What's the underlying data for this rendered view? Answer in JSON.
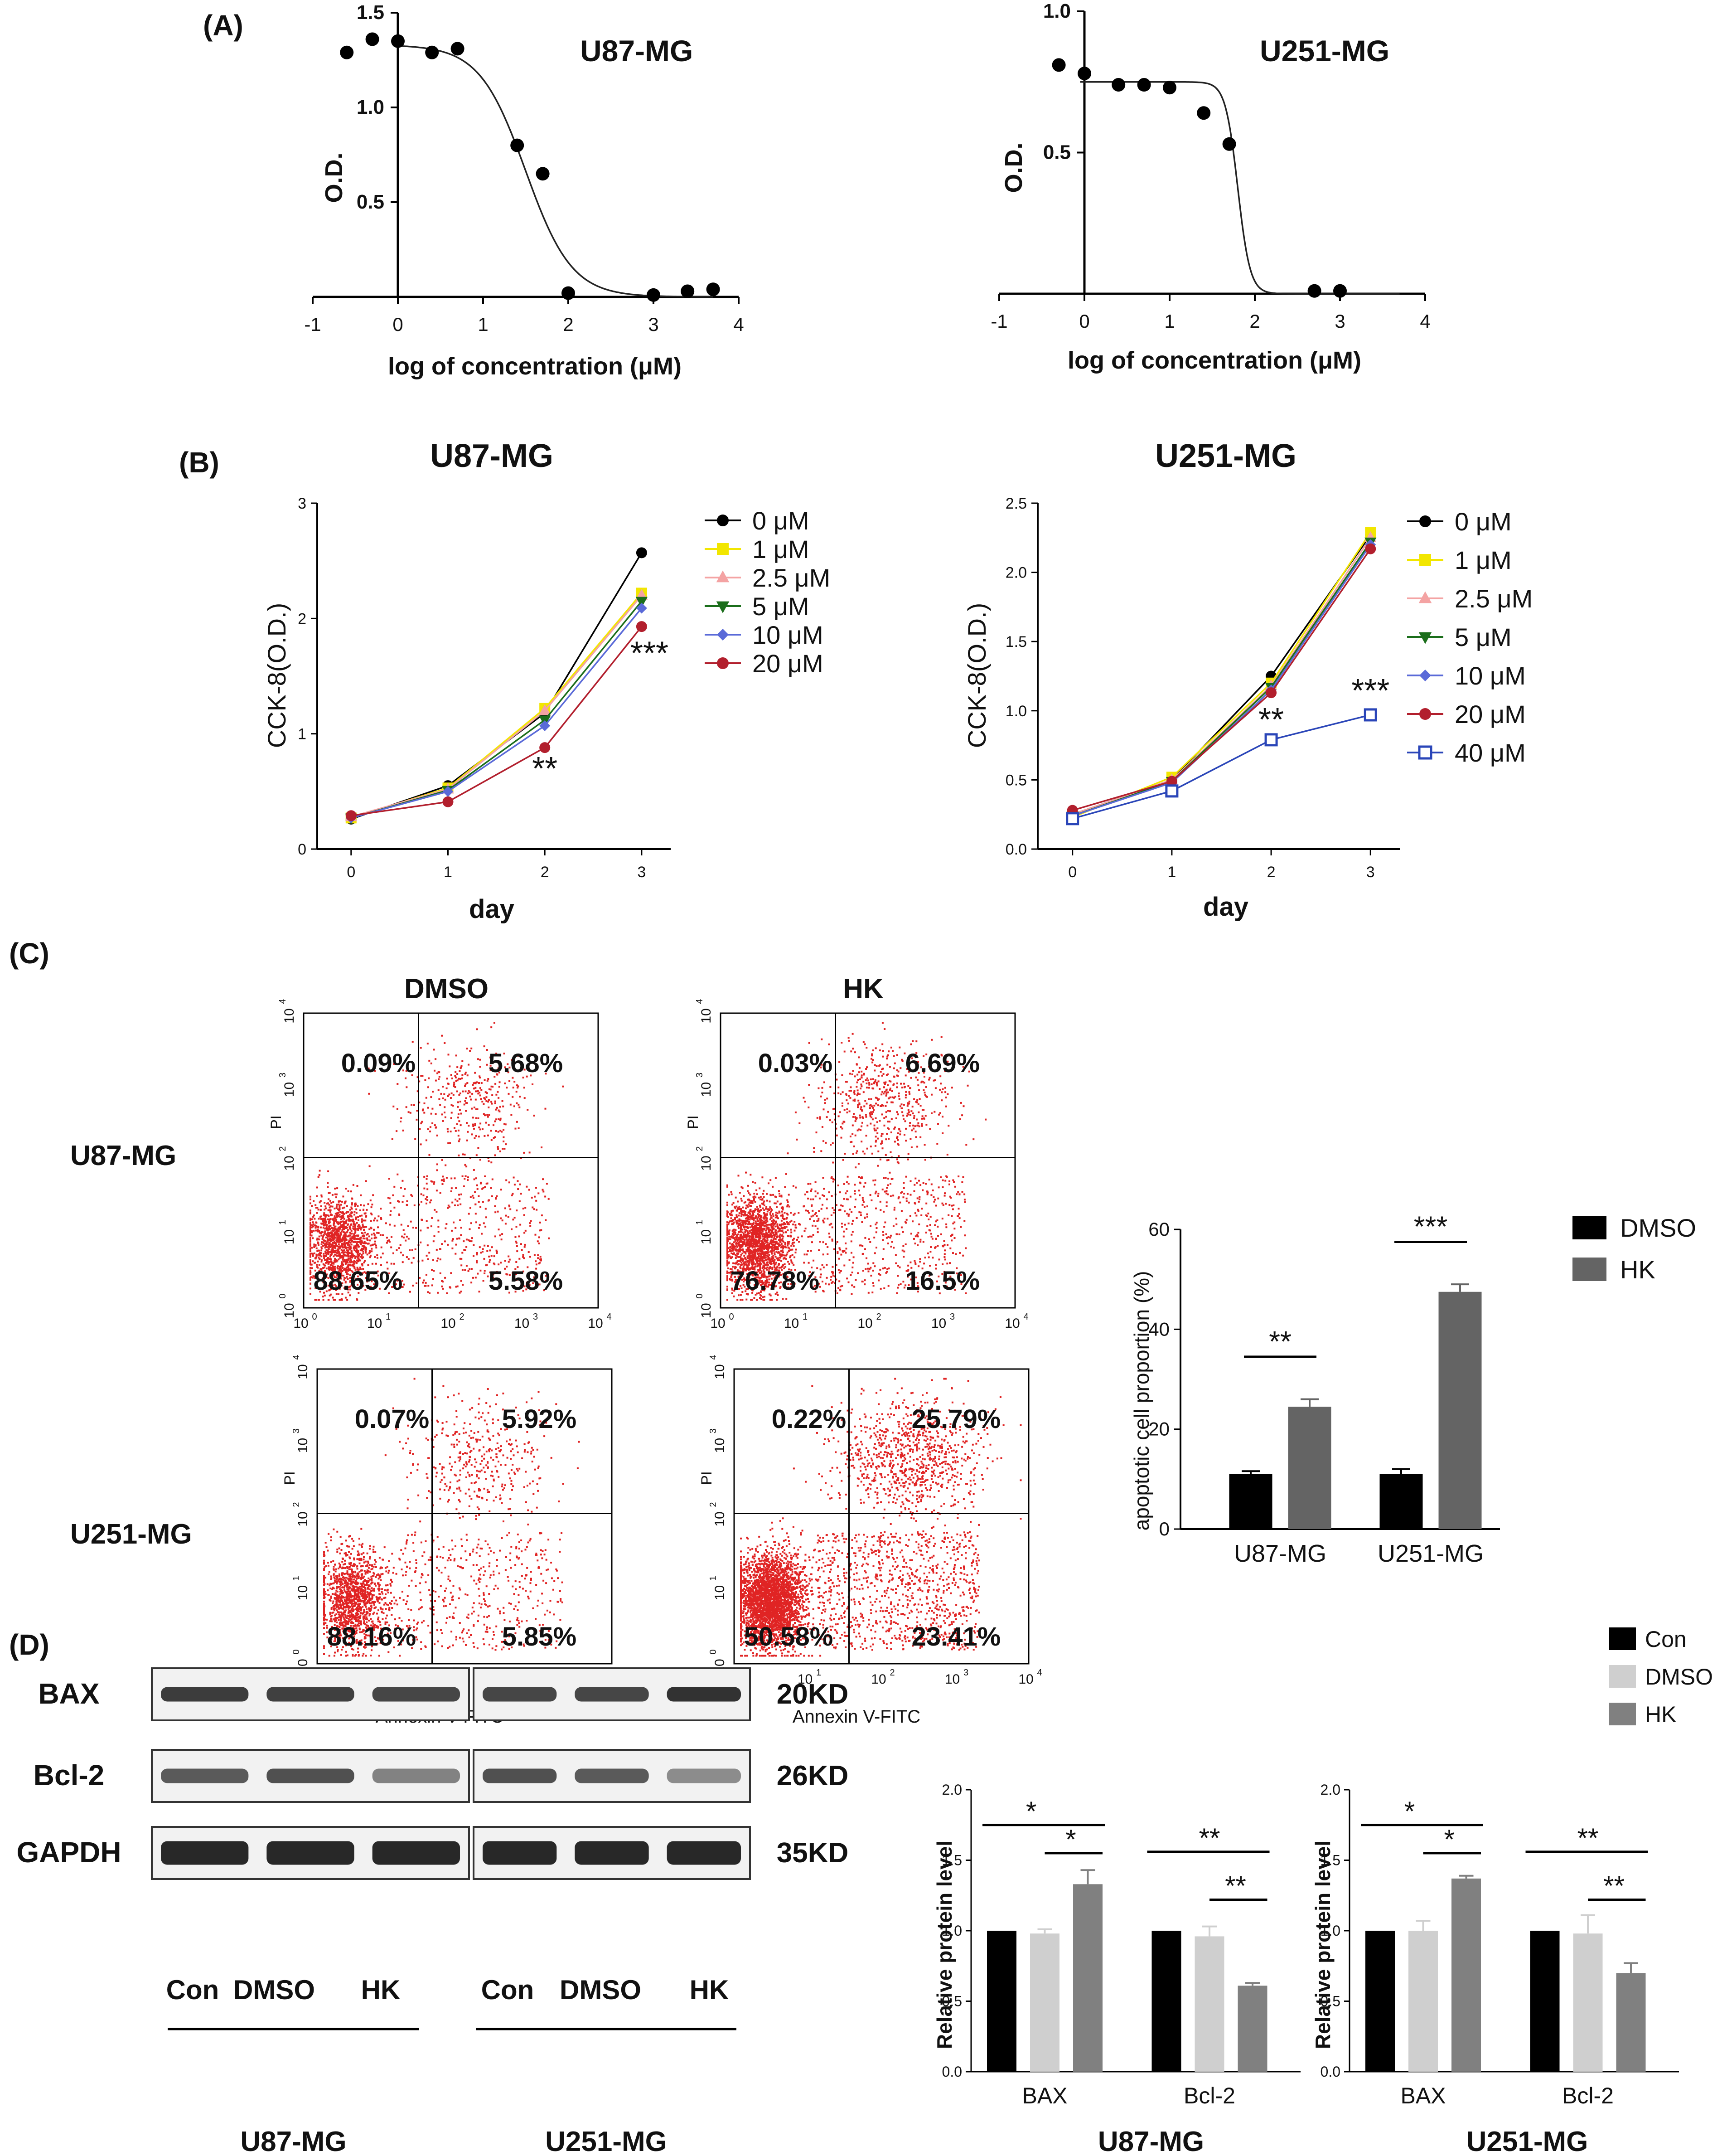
{
  "panels": {
    "A": {
      "label": "(A)"
    },
    "B": {
      "label": "(B)"
    },
    "C": {
      "label": "(C)"
    },
    "D": {
      "label": "(D)"
    }
  },
  "colors": {
    "black": "#000000",
    "yellow": "#f2e600",
    "pink": "#f4a3a3",
    "green": "#1b6e1b",
    "blue": "#5a6ad8",
    "darkred": "#b21f2d",
    "navy": "#2a45b8",
    "red": "#dd2222",
    "gray": "#646464",
    "lightgray": "#cfcfcf",
    "midgray": "#808080"
  },
  "chart_data": [
    {
      "id": "A-U87",
      "type": "scatter",
      "title": "U87-MG",
      "xlabel": "log of concentration (μM)",
      "ylabel": "O.D.",
      "xlim": [
        -1,
        4
      ],
      "ylim": [
        0,
        1.5
      ],
      "xticks": [
        -1,
        0,
        1,
        2,
        3,
        4
      ],
      "yticks": [
        0.5,
        1.0,
        1.5
      ],
      "ytick_labels": [
        "0.5",
        "1.0",
        "1.5"
      ],
      "points": {
        "x": [
          -0.6,
          -0.3,
          0.0,
          0.4,
          0.7,
          1.4,
          1.7,
          2.0,
          3.0,
          3.4,
          3.7
        ],
        "y": [
          1.29,
          1.36,
          1.35,
          1.29,
          1.31,
          0.8,
          0.65,
          0.02,
          0.01,
          0.03,
          0.04
        ]
      },
      "curve": {
        "top": 1.33,
        "bottom": 0.0,
        "log_ic50": 1.5,
        "hill": 1.6
      }
    },
    {
      "id": "A-U251",
      "type": "scatter",
      "title": "U251-MG",
      "xlabel": "log of concentration (μM)",
      "ylabel": "O.D.",
      "xlim": [
        -1,
        4
      ],
      "ylim": [
        0,
        1.0
      ],
      "xticks": [
        -1,
        0,
        1,
        2,
        3,
        4
      ],
      "yticks": [
        0.5,
        1.0
      ],
      "ytick_labels": [
        "0.5",
        "1.0"
      ],
      "points": {
        "x": [
          -0.3,
          0.0,
          0.4,
          0.7,
          1.0,
          1.4,
          1.7,
          2.7,
          3.0
        ],
        "y": [
          0.81,
          0.78,
          0.74,
          0.74,
          0.73,
          0.64,
          0.53,
          0.01,
          0.01
        ]
      },
      "curve": {
        "top": 0.75,
        "bottom": 0.0,
        "log_ic50": 1.8,
        "hill": 6
      }
    },
    {
      "id": "B-U87",
      "type": "line",
      "title": "U87-MG",
      "xlabel": "day",
      "ylabel": "CCK-8(O.D.)",
      "x": [
        0,
        1,
        2,
        3
      ],
      "xlim": [
        -0.35,
        3.3
      ],
      "ylim": [
        0,
        3
      ],
      "xticks": [
        0,
        1,
        2,
        3
      ],
      "yticks": [
        0,
        1,
        2,
        3
      ],
      "series": [
        {
          "name": "0   μM",
          "color": "#000000",
          "marker": "circle",
          "values": [
            0.26,
            0.55,
            1.18,
            2.57
          ]
        },
        {
          "name": "1   μM",
          "color": "#f2e600",
          "marker": "square",
          "values": [
            0.27,
            0.53,
            1.22,
            2.22
          ]
        },
        {
          "name": "2.5 μM",
          "color": "#f4a3a3",
          "marker": "triangle",
          "values": [
            0.28,
            0.52,
            1.2,
            2.2
          ]
        },
        {
          "name": "5   μM",
          "color": "#1b6e1b",
          "marker": "triangle-down",
          "values": [
            0.27,
            0.51,
            1.12,
            2.15
          ]
        },
        {
          "name": "10  μM",
          "color": "#5a6ad8",
          "marker": "diamond",
          "values": [
            0.27,
            0.5,
            1.07,
            2.09
          ]
        },
        {
          "name": "20  μM",
          "color": "#b21f2d",
          "marker": "circle",
          "values": [
            0.29,
            0.41,
            0.88,
            1.93
          ]
        }
      ],
      "annotations": [
        {
          "text": "**",
          "x": 2,
          "y": 0.68
        },
        {
          "text": "***",
          "x": 3.08,
          "y": 1.68
        }
      ]
    },
    {
      "id": "B-U251",
      "type": "line",
      "title": "U251-MG",
      "xlabel": "day",
      "ylabel": "CCK-8(O.D.)",
      "x": [
        0,
        1,
        2,
        3
      ],
      "xlim": [
        -0.35,
        3.3
      ],
      "ylim": [
        0,
        2.5
      ],
      "xticks": [
        0,
        1,
        2,
        3
      ],
      "yticks": [
        0.0,
        0.5,
        1.0,
        1.5,
        2.0,
        2.5
      ],
      "ytick_labels": [
        "0.0",
        "0.5",
        "1.0",
        "1.5",
        "2.0",
        "2.5"
      ],
      "series": [
        {
          "name": "0   μM",
          "color": "#000000",
          "marker": "circle",
          "values": [
            0.25,
            0.5,
            1.25,
            2.27
          ]
        },
        {
          "name": "1   μM",
          "color": "#f2e600",
          "marker": "square",
          "values": [
            0.23,
            0.52,
            1.2,
            2.29
          ]
        },
        {
          "name": "2.5 μM",
          "color": "#f4a3a3",
          "marker": "triangle",
          "values": [
            0.25,
            0.5,
            1.18,
            2.25
          ]
        },
        {
          "name": "5   μM",
          "color": "#1b6e1b",
          "marker": "triangle-down",
          "values": [
            0.24,
            0.49,
            1.17,
            2.22
          ]
        },
        {
          "name": "10  μM",
          "color": "#5a6ad8",
          "marker": "diamond",
          "values": [
            0.24,
            0.48,
            1.15,
            2.2
          ]
        },
        {
          "name": "20  μM",
          "color": "#b21f2d",
          "marker": "circle",
          "values": [
            0.28,
            0.49,
            1.13,
            2.17
          ]
        },
        {
          "name": "40  μM",
          "color": "#2a45b8",
          "marker": "open-square",
          "values": [
            0.22,
            0.42,
            0.79,
            0.97
          ]
        }
      ],
      "annotations": [
        {
          "text": "**",
          "x": 2,
          "y": 0.92
        },
        {
          "text": "***",
          "x": 3.0,
          "y": 1.13
        }
      ]
    },
    {
      "id": "C-flow",
      "type": "scatter",
      "column_titles": [
        "DMSO",
        "HK"
      ],
      "row_labels": [
        "U87-MG",
        "U251-MG"
      ],
      "xlabel": "Annexin V-FITC",
      "ylabel": "PI",
      "tick_bases": [
        "10",
        "10",
        "10",
        "10",
        "10"
      ],
      "tick_exponents": [
        "0",
        "1",
        "2",
        "3",
        "4"
      ],
      "plots": [
        {
          "id": "u87-dmso",
          "q_ul": "0.09%",
          "q_ur": "5.68%",
          "q_ll": "88.65%",
          "q_lr": "5.58%",
          "density": 1.0
        },
        {
          "id": "u87-hk",
          "q_ul": "0.03%",
          "q_ur": "6.69%",
          "q_ll": "76.78%",
          "q_lr": "16.5%",
          "density": 1.4
        },
        {
          "id": "u251-dmso",
          "q_ul": "0.07%",
          "q_ur": "5.92%",
          "q_ll": "88.16%",
          "q_lr": "5.85%",
          "density": 1.0
        },
        {
          "id": "u251-hk",
          "q_ul": "0.22%",
          "q_ur": "25.79%",
          "q_ll": "50.58%",
          "q_lr": "23.41%",
          "density": 2.2
        }
      ]
    },
    {
      "id": "C-bar",
      "type": "bar",
      "ylabel": "apoptotic cell proportion (%)",
      "categories": [
        "U87-MG",
        "U251-MG"
      ],
      "ylim": [
        0,
        60
      ],
      "yticks": [
        0,
        20,
        40,
        60
      ],
      "series": [
        {
          "name": "DMSO",
          "color": "#000000",
          "values": [
            11,
            11
          ],
          "errors": [
            0.6,
            1.0
          ]
        },
        {
          "name": "HK",
          "color": "#646464",
          "values": [
            24.5,
            47.5
          ],
          "errors": [
            1.5,
            1.5
          ]
        }
      ],
      "sig": [
        "**",
        "***"
      ]
    },
    {
      "id": "D-U87",
      "type": "bar",
      "ylabel": "Relative protein level",
      "xlabel": "U87-MG",
      "categories": [
        "BAX",
        "Bcl-2"
      ],
      "ylim": [
        0,
        2.0
      ],
      "yticks": [
        0.0,
        0.5,
        1.0,
        1.5,
        2.0
      ],
      "ytick_labels": [
        "0.0",
        "0.5",
        "1.0",
        "1.5",
        "2.0"
      ],
      "series": [
        {
          "name": "Con",
          "color": "#000000",
          "values": [
            1.0,
            1.0
          ],
          "errors": [
            0,
            0
          ]
        },
        {
          "name": "DMSO",
          "color": "#cfcfcf",
          "values": [
            0.98,
            0.96
          ],
          "errors": [
            0.03,
            0.07
          ]
        },
        {
          "name": "HK",
          "color": "#808080",
          "values": [
            1.33,
            0.61
          ],
          "errors": [
            0.1,
            0.02
          ]
        }
      ],
      "sig_groups": [
        {
          "wide": "*",
          "narrow": "*"
        },
        {
          "wide": "**",
          "narrow": "**"
        }
      ]
    },
    {
      "id": "D-U251",
      "type": "bar",
      "ylabel": "Relative protein level",
      "xlabel": "U251-MG",
      "categories": [
        "BAX",
        "Bcl-2"
      ],
      "ylim": [
        0,
        2.0
      ],
      "yticks": [
        0.0,
        0.5,
        1.0,
        1.5,
        2.0
      ],
      "ytick_labels": [
        "0.0",
        "0.5",
        "1.0",
        "1.5",
        "2.0"
      ],
      "series": [
        {
          "name": "Con",
          "color": "#000000",
          "values": [
            1.0,
            1.0
          ],
          "errors": [
            0,
            0
          ]
        },
        {
          "name": "DMSO",
          "color": "#cfcfcf",
          "values": [
            1.0,
            0.98
          ],
          "errors": [
            0.07,
            0.13
          ]
        },
        {
          "name": "HK",
          "color": "#808080",
          "values": [
            1.37,
            0.7
          ],
          "errors": [
            0.02,
            0.07
          ]
        }
      ],
      "sig_groups": [
        {
          "wide": "*",
          "narrow": "*"
        },
        {
          "wide": "**",
          "narrow": "**"
        }
      ]
    }
  ],
  "western": {
    "proteins": [
      "BAX",
      "Bcl-2",
      "GAPDH"
    ],
    "sizes": [
      "20KD",
      "26KD",
      "35KD"
    ],
    "lanes": [
      "Con",
      "DMSO",
      "HK"
    ],
    "cell_lines": [
      "U87-MG",
      "U251-MG"
    ],
    "band_intensity": {
      "U87-MG": [
        [
          0.9,
          0.88,
          0.85
        ],
        [
          0.75,
          0.8,
          0.55
        ],
        [
          1.0,
          1.0,
          1.0
        ]
      ],
      "U251-MG": [
        [
          0.85,
          0.85,
          0.95
        ],
        [
          0.8,
          0.75,
          0.5
        ],
        [
          1.0,
          1.0,
          1.0
        ]
      ]
    }
  }
}
